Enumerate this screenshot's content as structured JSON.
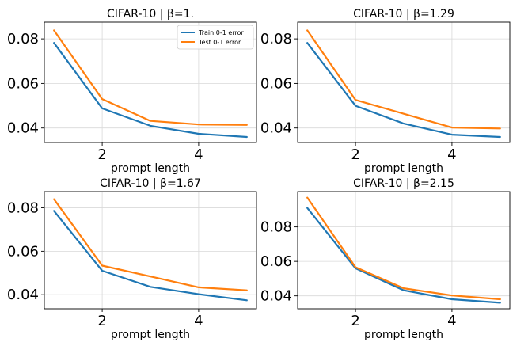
{
  "chart_data": [
    {
      "type": "line",
      "title": "CIFAR-10 | β=1.",
      "xlabel": "prompt length",
      "ylabel": "",
      "x": [
        1,
        2,
        3,
        4,
        5
      ],
      "xlim": [
        0.8,
        5.2
      ],
      "ylim": [
        0.0335,
        0.0875
      ],
      "xticks": [
        2,
        4
      ],
      "xtick_labels": [
        "2",
        "4"
      ],
      "yticks": [
        0.04,
        0.06,
        0.08
      ],
      "ytick_labels": [
        "0.04",
        "0.06",
        "0.08"
      ],
      "grid": true,
      "legend": "top-right",
      "series": [
        {
          "name": "Train 0-1 error",
          "color": "#1f77b4",
          "values": [
            0.0782,
            0.0488,
            0.041,
            0.0374,
            0.036
          ]
        },
        {
          "name": "Test 0-1 error",
          "color": "#ff7f0e",
          "values": [
            0.0838,
            0.053,
            0.0432,
            0.0416,
            0.0414
          ]
        }
      ]
    },
    {
      "type": "line",
      "title": "CIFAR-10 | β=1.29",
      "xlabel": "prompt length",
      "ylabel": "",
      "x": [
        1,
        2,
        3,
        4,
        5
      ],
      "xlim": [
        0.8,
        5.2
      ],
      "ylim": [
        0.0335,
        0.0875
      ],
      "xticks": [
        2,
        4
      ],
      "xtick_labels": [
        "2",
        "4"
      ],
      "yticks": [
        0.04,
        0.06,
        0.08
      ],
      "ytick_labels": [
        "0.04",
        "0.06",
        "0.08"
      ],
      "grid": true,
      "series": [
        {
          "name": "Train 0-1 error",
          "color": "#1f77b4",
          "values": [
            0.0782,
            0.05,
            0.042,
            0.037,
            0.036
          ]
        },
        {
          "name": "Test 0-1 error",
          "color": "#ff7f0e",
          "values": [
            0.0838,
            0.0526,
            0.0464,
            0.0402,
            0.0398
          ]
        }
      ]
    },
    {
      "type": "line",
      "title": "CIFAR-10 | β=1.67",
      "xlabel": "prompt length",
      "ylabel": "",
      "x": [
        1,
        2,
        3,
        4,
        5
      ],
      "xlim": [
        0.8,
        5.2
      ],
      "ylim": [
        0.0335,
        0.0875
      ],
      "xticks": [
        2,
        4
      ],
      "xtick_labels": [
        "2",
        "4"
      ],
      "yticks": [
        0.04,
        0.06,
        0.08
      ],
      "ytick_labels": [
        "0.04",
        "0.06",
        "0.08"
      ],
      "grid": true,
      "series": [
        {
          "name": "Train 0-1 error",
          "color": "#1f77b4",
          "values": [
            0.0786,
            0.051,
            0.0436,
            0.0402,
            0.0374
          ]
        },
        {
          "name": "Test 0-1 error",
          "color": "#ff7f0e",
          "values": [
            0.084,
            0.0534,
            0.0484,
            0.0434,
            0.042
          ]
        }
      ]
    },
    {
      "type": "line",
      "title": "CIFAR-10 | β=2.15",
      "xlabel": "prompt length",
      "ylabel": "",
      "x": [
        1,
        2,
        3,
        4,
        5
      ],
      "xlim": [
        0.8,
        5.2
      ],
      "ylim": [
        0.0325,
        0.1005
      ],
      "xticks": [
        2,
        4
      ],
      "xtick_labels": [
        "2",
        "4"
      ],
      "yticks": [
        0.04,
        0.06,
        0.08
      ],
      "ytick_labels": [
        "0.04",
        "0.06",
        "0.08"
      ],
      "grid": true,
      "series": [
        {
          "name": "Train 0-1 error",
          "color": "#1f77b4",
          "values": [
            0.091,
            0.056,
            0.0432,
            0.038,
            0.036
          ]
        },
        {
          "name": "Test 0-1 error",
          "color": "#ff7f0e",
          "values": [
            0.097,
            0.0566,
            0.0444,
            0.0402,
            0.038
          ]
        }
      ]
    }
  ]
}
